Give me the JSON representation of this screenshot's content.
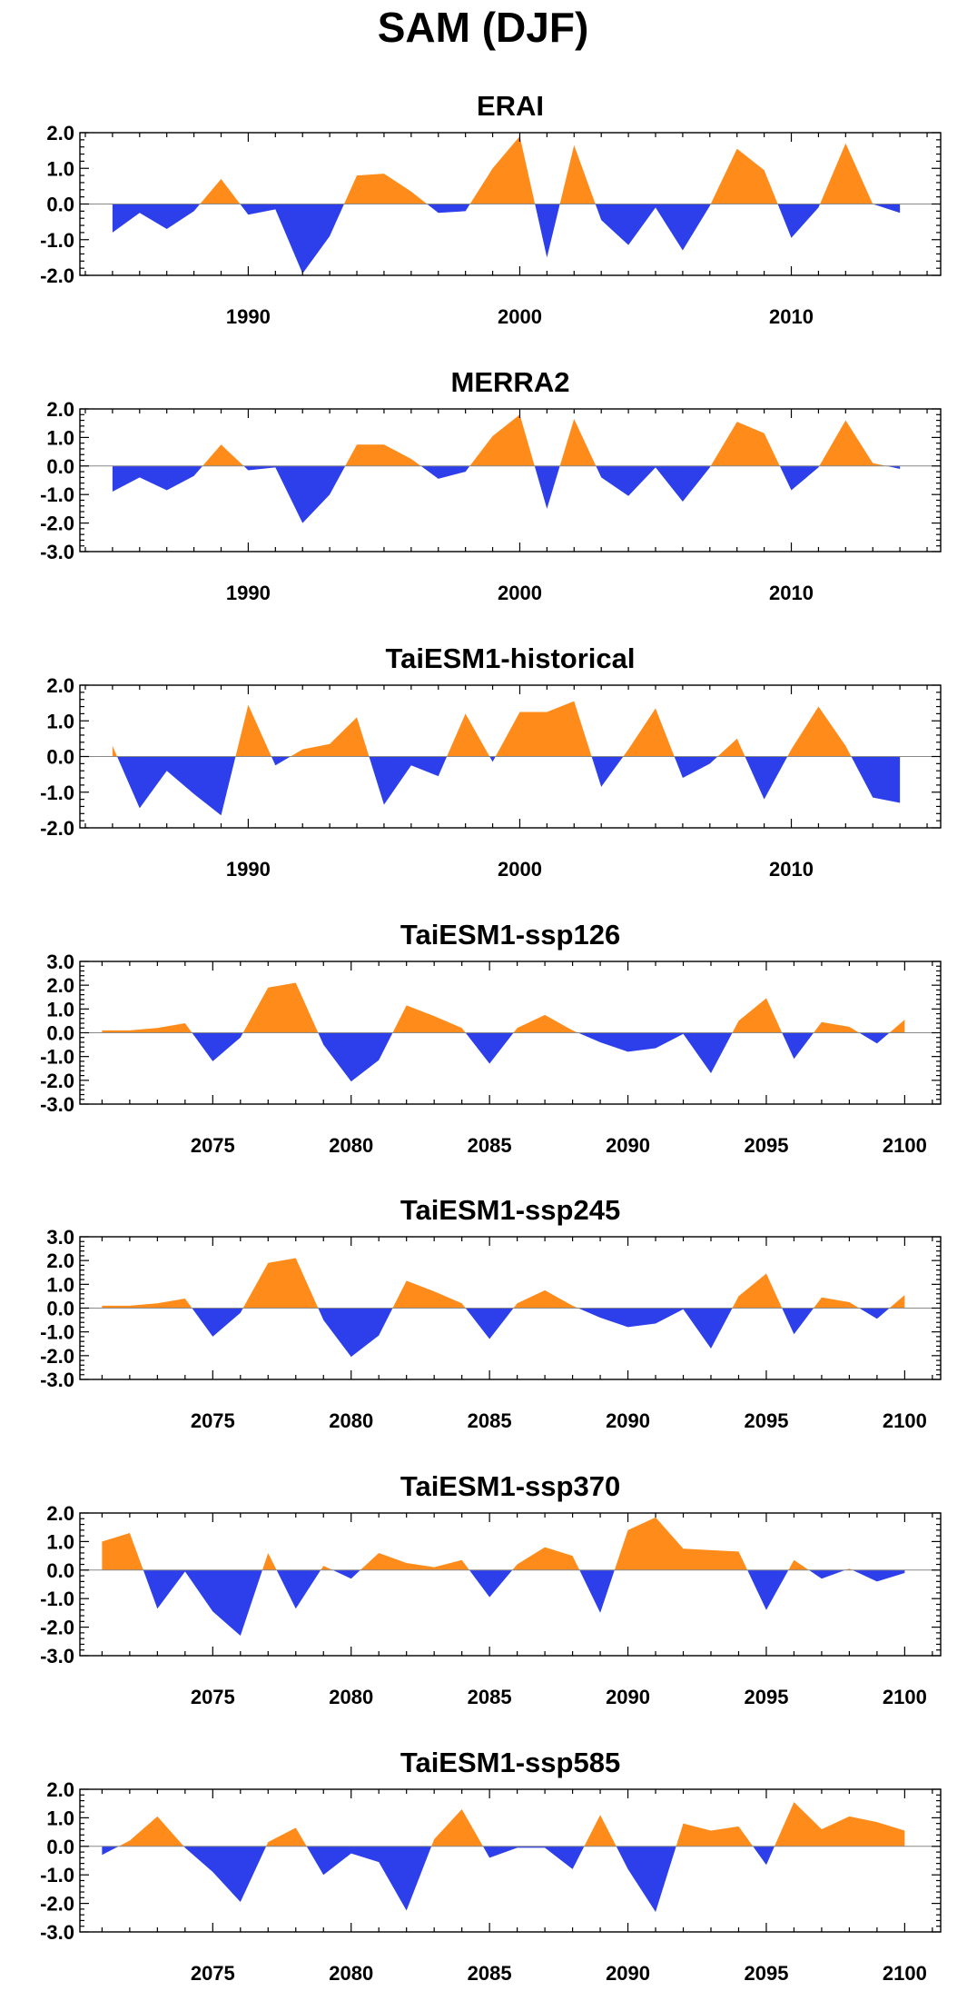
{
  "title": "SAM (DJF)",
  "colors": {
    "positive": "#ff8c1a",
    "negative": "#2d3fea",
    "frame": "#000000",
    "zero_line": "#888888"
  },
  "chart_data": [
    {
      "type": "area",
      "title": "ERAI",
      "x_start": 1985,
      "xlim": [
        1983.8,
        2015.5
      ],
      "ylim": [
        -2.0,
        2.0
      ],
      "yticks": [
        -2.0,
        -1.0,
        0.0,
        1.0,
        2.0
      ],
      "ytick_labels": [
        "-2.0",
        "-1.0",
        "0.0",
        "1.0",
        "2.0"
      ],
      "xticks": [
        1990,
        2000,
        2010
      ],
      "xtick_labels": [
        "1990",
        "2000",
        "2010"
      ],
      "values": [
        -0.8,
        -0.25,
        -0.7,
        -0.2,
        0.7,
        -0.3,
        -0.15,
        -1.95,
        -0.9,
        0.8,
        0.85,
        0.35,
        -0.25,
        -0.2,
        1.0,
        1.9,
        -1.5,
        1.65,
        -0.45,
        -1.15,
        -0.1,
        -1.3,
        -0.05,
        1.55,
        0.95,
        -0.95,
        -0.1,
        1.7,
        0.0,
        -0.25
      ]
    },
    {
      "type": "area",
      "title": "MERRA2",
      "x_start": 1985,
      "xlim": [
        1983.8,
        2015.5
      ],
      "ylim": [
        -3.0,
        2.0
      ],
      "yticks": [
        -3.0,
        -2.0,
        -1.0,
        0.0,
        1.0,
        2.0
      ],
      "ytick_labels": [
        "-3.0",
        "-2.0",
        "-1.0",
        "0.0",
        "1.0",
        "2.0"
      ],
      "xticks": [
        1990,
        2000,
        2010
      ],
      "xtick_labels": [
        "1990",
        "2000",
        "2010"
      ],
      "values": [
        -0.9,
        -0.4,
        -0.85,
        -0.35,
        0.75,
        -0.15,
        -0.05,
        -2.0,
        -1.0,
        0.75,
        0.75,
        0.25,
        -0.45,
        -0.2,
        1.05,
        1.8,
        -1.5,
        1.65,
        -0.4,
        -1.05,
        -0.05,
        -1.25,
        -0.05,
        1.55,
        1.15,
        -0.85,
        -0.05,
        1.6,
        0.1,
        -0.1
      ]
    },
    {
      "type": "area",
      "title": "TaiESM1-historical",
      "x_start": 1985,
      "xlim": [
        1983.8,
        2015.5
      ],
      "ylim": [
        -2.0,
        2.0
      ],
      "yticks": [
        -2.0,
        -1.0,
        0.0,
        1.0,
        2.0
      ],
      "ytick_labels": [
        "-2.0",
        "-1.0",
        "0.0",
        "1.0",
        "2.0"
      ],
      "xticks": [
        1990,
        2000,
        2010
      ],
      "xtick_labels": [
        "1990",
        "2000",
        "2010"
      ],
      "values": [
        0.3,
        -1.45,
        -0.4,
        -1.05,
        -1.65,
        1.45,
        -0.25,
        0.2,
        0.35,
        1.1,
        -1.35,
        -0.25,
        -0.55,
        1.2,
        -0.15,
        1.25,
        1.25,
        1.55,
        -0.85,
        0.2,
        1.35,
        -0.6,
        -0.2,
        0.5,
        -1.2,
        0.2,
        1.4,
        0.3,
        -1.15,
        -1.3
      ]
    },
    {
      "type": "area",
      "title": "TaiESM1-ssp126",
      "x_start": 2071,
      "xlim": [
        2070.2,
        2101.3
      ],
      "ylim": [
        -3.0,
        3.0
      ],
      "yticks": [
        -3.0,
        -2.0,
        -1.0,
        0.0,
        1.0,
        2.0,
        3.0
      ],
      "ytick_labels": [
        "-3.0",
        "-2.0",
        "-1.0",
        "0.0",
        "1.0",
        "2.0",
        "3.0"
      ],
      "xticks": [
        2075,
        2080,
        2085,
        2090,
        2095,
        2100
      ],
      "xtick_labels": [
        "2075",
        "2080",
        "2085",
        "2090",
        "2095",
        "2100"
      ],
      "values": [
        0.1,
        0.1,
        0.2,
        0.4,
        -1.2,
        -0.2,
        1.9,
        2.1,
        -0.5,
        -2.05,
        -1.15,
        1.15,
        0.7,
        0.2,
        -1.3,
        0.2,
        0.75,
        0.1,
        -0.4,
        -0.8,
        -0.65,
        -0.05,
        -1.7,
        0.5,
        1.45,
        -1.1,
        0.45,
        0.25,
        -0.45,
        0.55
      ]
    },
    {
      "type": "area",
      "title": "TaiESM1-ssp245",
      "x_start": 2071,
      "xlim": [
        2070.2,
        2101.3
      ],
      "ylim": [
        -3.0,
        3.0
      ],
      "yticks": [
        -3.0,
        -2.0,
        -1.0,
        0.0,
        1.0,
        2.0,
        3.0
      ],
      "ytick_labels": [
        "-3.0",
        "-2.0",
        "-1.0",
        "0.0",
        "1.0",
        "2.0",
        "3.0"
      ],
      "xticks": [
        2075,
        2080,
        2085,
        2090,
        2095,
        2100
      ],
      "xtick_labels": [
        "2075",
        "2080",
        "2085",
        "2090",
        "2095",
        "2100"
      ],
      "values": [
        0.1,
        0.1,
        0.2,
        0.4,
        -1.2,
        -0.2,
        1.9,
        2.1,
        -0.5,
        -2.05,
        -1.15,
        1.15,
        0.7,
        0.2,
        -1.3,
        0.2,
        0.75,
        0.1,
        -0.4,
        -0.8,
        -0.65,
        -0.05,
        -1.7,
        0.5,
        1.45,
        -1.1,
        0.45,
        0.25,
        -0.45,
        0.55
      ]
    },
    {
      "type": "area",
      "title": "TaiESM1-ssp370",
      "x_start": 2071,
      "xlim": [
        2070.2,
        2101.3
      ],
      "ylim": [
        -3.0,
        2.0
      ],
      "yticks": [
        -3.0,
        -2.0,
        -1.0,
        0.0,
        1.0,
        2.0
      ],
      "ytick_labels": [
        "-3.0",
        "-2.0",
        "-1.0",
        "0.0",
        "1.0",
        "2.0"
      ],
      "xticks": [
        2075,
        2080,
        2085,
        2090,
        2095,
        2100
      ],
      "xtick_labels": [
        "2075",
        "2080",
        "2085",
        "2090",
        "2095",
        "2100"
      ],
      "values": [
        1.0,
        1.3,
        -1.35,
        -0.05,
        -1.45,
        -2.3,
        0.6,
        -1.35,
        0.15,
        -0.3,
        0.6,
        0.25,
        0.1,
        0.35,
        -0.95,
        0.2,
        0.8,
        0.5,
        -1.5,
        1.4,
        1.85,
        0.75,
        0.7,
        0.65,
        -1.4,
        0.35,
        -0.3,
        0.05,
        -0.4,
        -0.1
      ]
    },
    {
      "type": "area",
      "title": "TaiESM1-ssp585",
      "x_start": 2071,
      "xlim": [
        2070.2,
        2101.3
      ],
      "ylim": [
        -3.0,
        2.0
      ],
      "yticks": [
        -3.0,
        -2.0,
        -1.0,
        0.0,
        1.0,
        2.0
      ],
      "ytick_labels": [
        "-3.0",
        "-2.0",
        "-1.0",
        "0.0",
        "1.0",
        "2.0"
      ],
      "xticks": [
        2075,
        2080,
        2085,
        2090,
        2095,
        2100
      ],
      "xtick_labels": [
        "2075",
        "2080",
        "2085",
        "2090",
        "2095",
        "2100"
      ],
      "values": [
        -0.3,
        0.2,
        1.05,
        -0.05,
        -0.9,
        -1.95,
        0.15,
        0.65,
        -1.0,
        -0.25,
        -0.55,
        -2.25,
        0.25,
        1.3,
        -0.4,
        -0.05,
        -0.05,
        -0.8,
        1.1,
        -0.8,
        -2.3,
        0.8,
        0.55,
        0.7,
        -0.65,
        1.55,
        0.6,
        1.05,
        0.85,
        0.55
      ]
    }
  ]
}
